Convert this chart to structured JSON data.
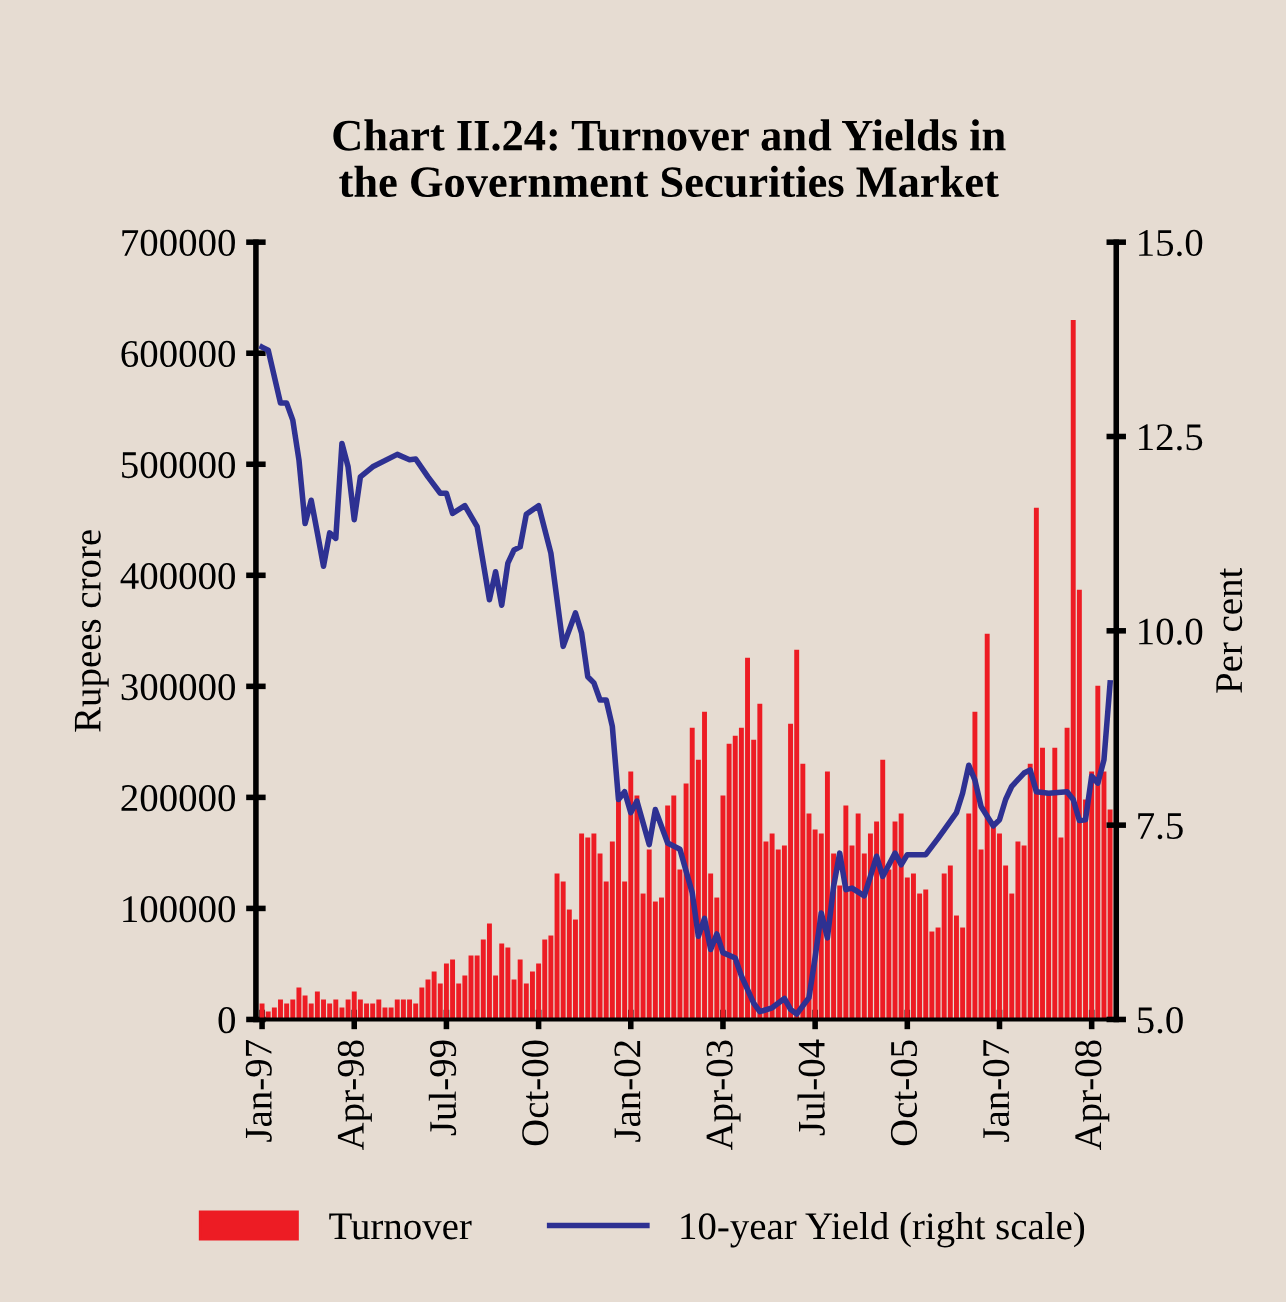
{
  "chart_data": {
    "type": "bar",
    "title": "Chart II.24: Turnover and Yields in\nthe Government Securities Market",
    "ylabel": "Rupees crore",
    "y2label": "Per cent",
    "x": [
      "1997-01",
      "1997-02",
      "1997-03",
      "1997-04",
      "1997-05",
      "1997-06",
      "1997-07",
      "1997-08",
      "1997-09",
      "1997-10",
      "1997-11",
      "1997-12",
      "1998-01",
      "1998-02",
      "1998-03",
      "1998-04",
      "1998-05",
      "1998-06",
      "1998-07",
      "1998-08",
      "1998-09",
      "1998-10",
      "1998-11",
      "1998-12",
      "1999-01",
      "1999-02",
      "1999-03",
      "1999-04",
      "1999-05",
      "1999-06",
      "1999-07",
      "1999-08",
      "1999-09",
      "1999-10",
      "1999-11",
      "1999-12",
      "2000-01",
      "2000-02",
      "2000-03",
      "2000-04",
      "2000-05",
      "2000-06",
      "2000-07",
      "2000-08",
      "2000-09",
      "2000-10",
      "2000-11",
      "2000-12",
      "2001-01",
      "2001-02",
      "2001-03",
      "2001-04",
      "2001-05",
      "2001-06",
      "2001-07",
      "2001-08",
      "2001-09",
      "2001-10",
      "2001-11",
      "2001-12",
      "2002-01",
      "2002-02",
      "2002-03",
      "2002-04",
      "2002-05",
      "2002-06",
      "2002-07",
      "2002-08",
      "2002-09",
      "2002-10",
      "2002-11",
      "2002-12",
      "2003-01",
      "2003-02",
      "2003-03",
      "2003-04",
      "2003-05",
      "2003-06",
      "2003-07",
      "2003-08",
      "2003-09",
      "2003-10",
      "2003-11",
      "2003-12",
      "2004-01",
      "2004-02",
      "2004-03",
      "2004-04",
      "2004-05",
      "2004-06",
      "2004-07",
      "2004-08",
      "2004-09",
      "2004-10",
      "2004-11",
      "2004-12",
      "2005-01",
      "2005-02",
      "2005-03",
      "2005-04",
      "2005-05",
      "2005-06",
      "2005-07",
      "2005-08",
      "2005-09",
      "2005-10",
      "2005-11",
      "2005-12",
      "2006-01",
      "2006-02",
      "2006-03",
      "2006-04",
      "2006-05",
      "2006-06",
      "2006-07",
      "2006-08",
      "2006-09",
      "2006-10",
      "2006-11",
      "2006-12",
      "2007-01",
      "2007-02",
      "2007-03",
      "2007-04",
      "2007-05",
      "2007-06",
      "2007-07",
      "2007-08",
      "2007-09",
      "2007-10",
      "2007-11",
      "2007-12",
      "2008-01",
      "2008-02",
      "2008-03",
      "2008-04",
      "2008-05",
      "2008-06",
      "2008-07"
    ],
    "series": [
      {
        "name": "Turnover",
        "color": "#ed1c24",
        "values": [
          14400,
          7200,
          10800,
          18000,
          14400,
          18000,
          28800,
          21600,
          14400,
          25200,
          18000,
          14400,
          18000,
          10800,
          18000,
          25200,
          18000,
          14400,
          14400,
          18000,
          10800,
          10800,
          18000,
          18000,
          18000,
          14400,
          28800,
          36000,
          43200,
          32400,
          50400,
          54000,
          32400,
          39600,
          57600,
          57600,
          72000,
          86400,
          39600,
          68400,
          64800,
          36000,
          54000,
          32400,
          43200,
          50400,
          72000,
          75600,
          131400,
          124200,
          99000,
          90000,
          167400,
          163800,
          167400,
          149400,
          124200,
          160200,
          198000,
          124200,
          223200,
          201600,
          113400,
          153000,
          106200,
          109800,
          192600,
          201600,
          135000,
          212400,
          262800,
          234000,
          277200,
          131400,
          109800,
          201600,
          248400,
          255600,
          262800,
          325800,
          252000,
          284400,
          160200,
          167400,
          153000,
          156600,
          266400,
          333000,
          230400,
          185400,
          171000,
          167400,
          223200,
          149400,
          120600,
          192600,
          156600,
          185400,
          149400,
          167400,
          178200,
          234000,
          135000,
          178200,
          185400,
          127800,
          131400,
          113400,
          117000,
          79200,
          82800,
          131400,
          138600,
          93600,
          82800,
          185400,
          277200,
          153000,
          347400,
          178200,
          167400,
          138600,
          113400,
          160200,
          156600,
          230400,
          460800,
          244800,
          203400,
          244800,
          163800,
          262800,
          630000,
          387000,
          198000,
          223200,
          300600,
          223200,
          189000
        ]
      },
      {
        "name": "10-year Yield (right scale)",
        "type": "line",
        "axis": "y2",
        "color": "#2e3192",
        "x": [
          "1997-01",
          "1997-02",
          "1997-04",
          "1997-05",
          "1997-06",
          "1997-07",
          "1997-08",
          "1997-09",
          "1997-10",
          "1997-11",
          "1997-12",
          "1998-01",
          "1998-02",
          "1998-03",
          "1998-04",
          "1998-05",
          "1998-07",
          "1998-11",
          "1999-01",
          "1999-02",
          "1999-04",
          "1999-06",
          "1999-07",
          "1999-08",
          "1999-10",
          "1999-12",
          "2000-02",
          "2000-03",
          "2000-04",
          "2000-05",
          "2000-06",
          "2000-07",
          "2000-08",
          "2000-10",
          "2000-12",
          "2001-01",
          "2001-02",
          "2001-04",
          "2001-05",
          "2001-06",
          "2001-07",
          "2001-08",
          "2001-09",
          "2001-10",
          "2001-11",
          "2001-12",
          "2002-01",
          "2002-02",
          "2002-04",
          "2002-05",
          "2002-07",
          "2002-09",
          "2002-11",
          "2002-12",
          "2003-01",
          "2003-02",
          "2003-03",
          "2003-04",
          "2003-06",
          "2003-07",
          "2003-09",
          "2003-10",
          "2003-12",
          "2004-02",
          "2004-03",
          "2004-04",
          "2004-06",
          "2004-07",
          "2004-08",
          "2004-09",
          "2004-10",
          "2004-11",
          "2004-12",
          "2005-01",
          "2005-03",
          "2005-04",
          "2005-05",
          "2005-06",
          "2005-08",
          "2005-09",
          "2005-10",
          "2006-01",
          "2006-03",
          "2006-04",
          "2006-06",
          "2006-07",
          "2006-08",
          "2006-09",
          "2006-10",
          "2006-12",
          "2007-01",
          "2007-02",
          "2007-03",
          "2007-05",
          "2007-06",
          "2007-07",
          "2007-09",
          "2007-12",
          "2008-01",
          "2008-02",
          "2008-03",
          "2008-04",
          "2008-05",
          "2008-06",
          "2008-07"
        ],
        "values": [
          13.65,
          13.61,
          12.93,
          12.93,
          12.71,
          12.2,
          11.38,
          11.68,
          11.26,
          10.83,
          11.26,
          11.19,
          12.41,
          12.11,
          11.43,
          11.98,
          12.11,
          12.27,
          12.2,
          12.21,
          11.98,
          11.77,
          11.77,
          11.51,
          11.61,
          11.34,
          10.4,
          10.76,
          10.33,
          10.87,
          11.04,
          11.08,
          11.5,
          11.61,
          11.0,
          10.4,
          9.8,
          10.23,
          9.97,
          9.41,
          9.33,
          9.11,
          9.11,
          8.77,
          7.83,
          7.93,
          7.66,
          7.81,
          7.25,
          7.7,
          7.27,
          7.19,
          6.63,
          6.07,
          6.3,
          5.9,
          6.1,
          5.86,
          5.79,
          5.56,
          5.21,
          5.1,
          5.15,
          5.27,
          5.13,
          5.07,
          5.28,
          5.8,
          6.37,
          6.05,
          6.71,
          7.14,
          6.67,
          6.69,
          6.59,
          6.84,
          7.1,
          6.84,
          7.14,
          6.99,
          7.12,
          7.12,
          7.33,
          7.44,
          7.66,
          7.91,
          8.27,
          8.08,
          7.74,
          7.49,
          7.57,
          7.83,
          8.0,
          8.17,
          8.21,
          7.93,
          7.91,
          7.93,
          7.83,
          7.56,
          7.57,
          8.13,
          8.04,
          8.34,
          9.33
        ]
      }
    ],
    "xlim": [
      "1996-12",
      "2008-08"
    ],
    "xticks": [
      {
        "value": "1997-01",
        "label": "Jan-97"
      },
      {
        "value": "1998-04",
        "label": "Apr-98"
      },
      {
        "value": "1999-07",
        "label": "Jul-99"
      },
      {
        "value": "2000-10",
        "label": "Oct-00"
      },
      {
        "value": "2002-01",
        "label": "Jan-02"
      },
      {
        "value": "2003-04",
        "label": "Apr-03"
      },
      {
        "value": "2004-07",
        "label": "Jul-04"
      },
      {
        "value": "2005-10",
        "label": "Oct-05"
      },
      {
        "value": "2007-01",
        "label": "Jan-07"
      },
      {
        "value": "2008-04",
        "label": "Apr-08"
      }
    ],
    "ylim": [
      0,
      700000
    ],
    "yticks": [
      0,
      100000,
      200000,
      300000,
      400000,
      500000,
      600000,
      700000
    ],
    "y2lim": [
      5,
      15
    ],
    "y2ticks": [
      {
        "value": 5,
        "label": "5.0"
      },
      {
        "value": 7.5,
        "label": "7.5"
      },
      {
        "value": 10,
        "label": "10.0"
      },
      {
        "value": 12.5,
        "label": "12.5"
      },
      {
        "value": 15,
        "label": "15.0"
      }
    ],
    "legend": "bottom",
    "grid": false
  }
}
